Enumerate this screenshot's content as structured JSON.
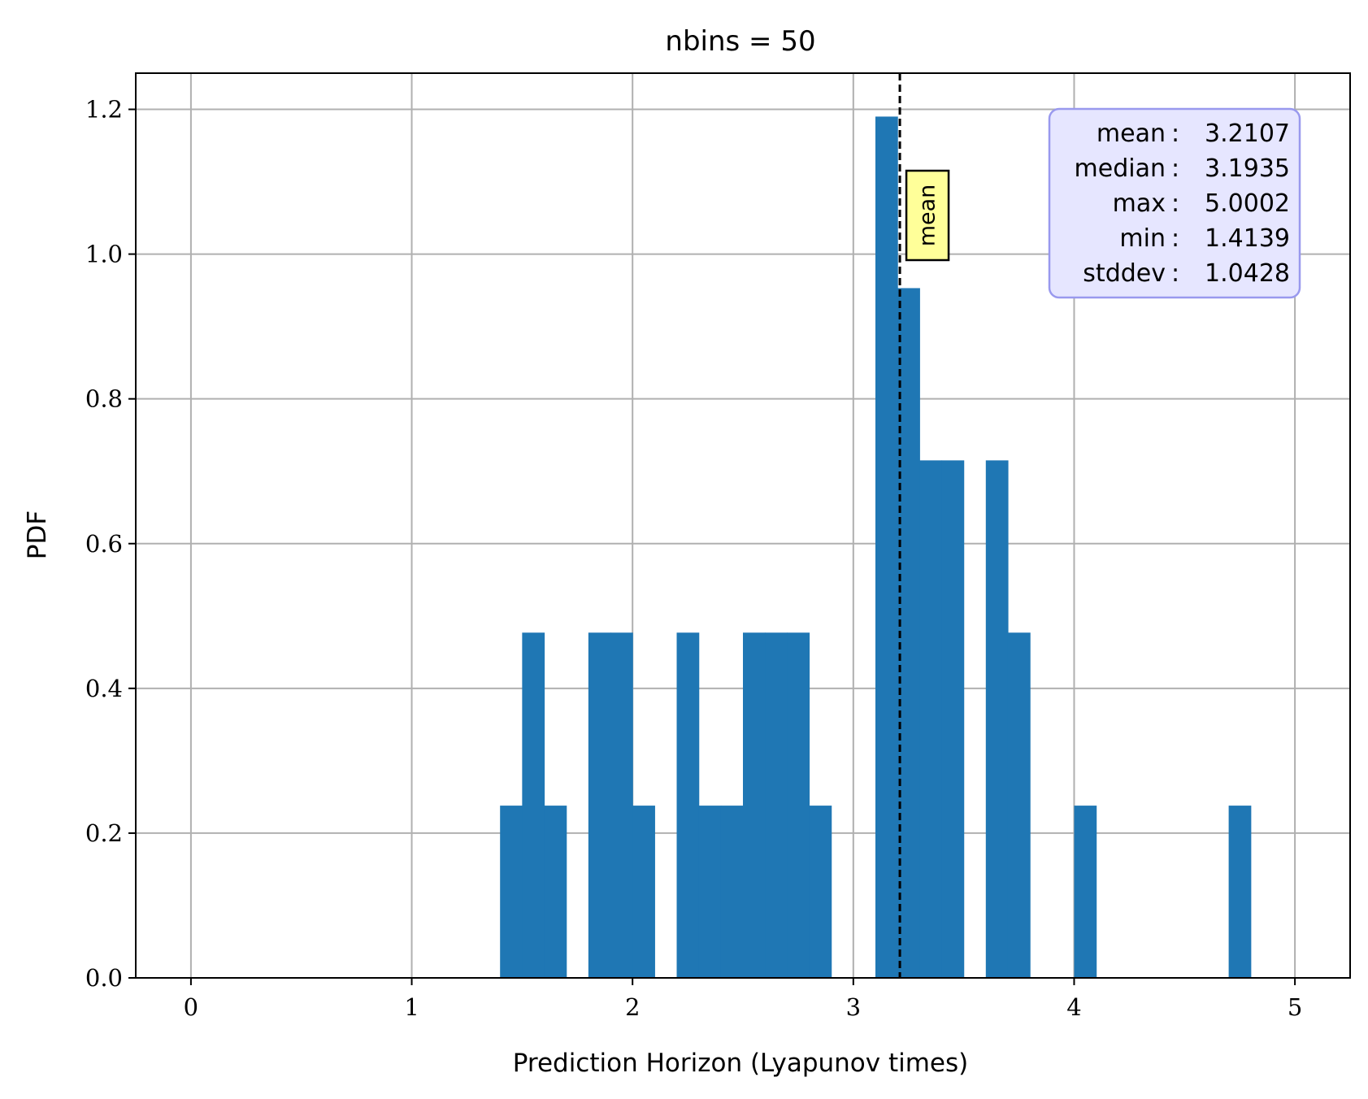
{
  "chart_data": {
    "type": "bar",
    "title": "nbins = 50",
    "xlabel": "Prediction Horizon (Lyapunov times)",
    "ylabel": "PDF",
    "xlim": [
      -0.25,
      5.25
    ],
    "ylim": [
      0,
      1.25
    ],
    "xticks": [
      0,
      1,
      2,
      3,
      4,
      5
    ],
    "yticks": [
      0.0,
      0.2,
      0.4,
      0.6,
      0.8,
      1.0,
      1.2
    ],
    "xtick_labels": [
      "0",
      "1",
      "2",
      "3",
      "4",
      "5"
    ],
    "ytick_labels": [
      "0.0",
      "0.2",
      "0.4",
      "0.6",
      "0.8",
      "1.0",
      "1.2"
    ],
    "grid": true,
    "bar_color": "#1f77b4",
    "bins": [
      {
        "x0": 1.4,
        "x1": 1.5,
        "value": 0.238
      },
      {
        "x0": 1.5,
        "x1": 1.6,
        "value": 0.477
      },
      {
        "x0": 1.6,
        "x1": 1.7,
        "value": 0.238
      },
      {
        "x0": 1.8,
        "x1": 1.9,
        "value": 0.477
      },
      {
        "x0": 1.9,
        "x1": 2.0,
        "value": 0.477
      },
      {
        "x0": 2.0,
        "x1": 2.1,
        "value": 0.238
      },
      {
        "x0": 2.2,
        "x1": 2.3,
        "value": 0.477
      },
      {
        "x0": 2.3,
        "x1": 2.4,
        "value": 0.238
      },
      {
        "x0": 2.4,
        "x1": 2.5,
        "value": 0.238
      },
      {
        "x0": 2.5,
        "x1": 2.6,
        "value": 0.477
      },
      {
        "x0": 2.6,
        "x1": 2.7,
        "value": 0.477
      },
      {
        "x0": 2.7,
        "x1": 2.8,
        "value": 0.477
      },
      {
        "x0": 2.8,
        "x1": 2.9,
        "value": 0.238
      },
      {
        "x0": 3.1,
        "x1": 3.2,
        "value": 1.19
      },
      {
        "x0": 3.2,
        "x1": 3.3,
        "value": 0.953
      },
      {
        "x0": 3.3,
        "x1": 3.4,
        "value": 0.715
      },
      {
        "x0": 3.4,
        "x1": 3.5,
        "value": 0.715
      },
      {
        "x0": 3.6,
        "x1": 3.7,
        "value": 0.715
      },
      {
        "x0": 3.7,
        "x1": 3.8,
        "value": 0.477
      },
      {
        "x0": 4.0,
        "x1": 4.1,
        "value": 0.238
      },
      {
        "x0": 4.7,
        "x1": 4.8,
        "value": 0.238
      }
    ],
    "mean_line": {
      "x": 3.2107,
      "label": "mean",
      "label_color": "#ffff99"
    },
    "stats_box": {
      "background": "#e6e6ff",
      "border": "#9999ee",
      "rows": [
        {
          "label": "mean",
          "value": "3.2107"
        },
        {
          "label": "median",
          "value": "3.1935"
        },
        {
          "label": "max",
          "value": "5.0002"
        },
        {
          "label": "min",
          "value": "1.4139"
        },
        {
          "label": "stddev",
          "value": "1.0428"
        }
      ]
    }
  }
}
